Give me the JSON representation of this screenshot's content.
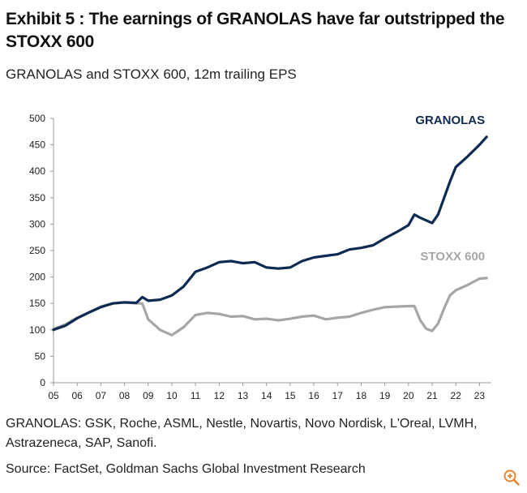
{
  "header": {
    "title": "Exhibit 5 : The earnings of GRANOLAS have far outstripped the STOXX 600",
    "subtitle": "GRANOLAS and STOXX 600, 12m trailing EPS"
  },
  "footer": {
    "note": "GRANOLAS: GSK, Roche, ASML, Nestle, Novartis, Novo Nordisk, L'Oreal, LVMH, Astrazeneca, SAP, Sanofi.",
    "source": "Source: FactSet, Goldman Sachs Global Investment Research",
    "zoom_icon": "zoom-in-icon"
  },
  "chart_data": {
    "type": "line",
    "title": "GRANOLAS and STOXX 600, 12m trailing EPS",
    "xlabel": "",
    "ylabel": "",
    "xlim": [
      2005,
      2023.5
    ],
    "ylim": [
      0,
      500
    ],
    "yticks": [
      0,
      50,
      100,
      150,
      200,
      250,
      300,
      350,
      400,
      450,
      500
    ],
    "xticks": [
      {
        "value": 2005,
        "label": "05"
      },
      {
        "value": 2006,
        "label": "06"
      },
      {
        "value": 2007,
        "label": "07"
      },
      {
        "value": 2008,
        "label": "08"
      },
      {
        "value": 2009,
        "label": "09"
      },
      {
        "value": 2010,
        "label": "10"
      },
      {
        "value": 2011,
        "label": "11"
      },
      {
        "value": 2012,
        "label": "12"
      },
      {
        "value": 2013,
        "label": "13"
      },
      {
        "value": 2014,
        "label": "14"
      },
      {
        "value": 2015,
        "label": "15"
      },
      {
        "value": 2016,
        "label": "16"
      },
      {
        "value": 2017,
        "label": "17"
      },
      {
        "value": 2018,
        "label": "18"
      },
      {
        "value": 2019,
        "label": "19"
      },
      {
        "value": 2020,
        "label": "20"
      },
      {
        "value": 2021,
        "label": "21"
      },
      {
        "value": 2022,
        "label": "22"
      },
      {
        "value": 2023,
        "label": "23"
      }
    ],
    "grid": false,
    "series": [
      {
        "name": "GRANOLAS",
        "color": "#0d2b52",
        "x": [
          2005.0,
          2005.5,
          2006.0,
          2006.5,
          2007.0,
          2007.5,
          2008.0,
          2008.5,
          2008.75,
          2009.0,
          2009.5,
          2010.0,
          2010.5,
          2011.0,
          2011.5,
          2012.0,
          2012.5,
          2013.0,
          2013.5,
          2014.0,
          2014.5,
          2015.0,
          2015.5,
          2016.0,
          2016.5,
          2017.0,
          2017.5,
          2018.0,
          2018.5,
          2019.0,
          2019.5,
          2020.0,
          2020.25,
          2020.5,
          2021.0,
          2021.25,
          2021.75,
          2022.0,
          2022.5,
          2023.0,
          2023.3
        ],
        "values": [
          100,
          108,
          122,
          133,
          143,
          150,
          152,
          151,
          162,
          155,
          157,
          165,
          182,
          210,
          218,
          228,
          230,
          226,
          228,
          218,
          216,
          218,
          230,
          237,
          240,
          243,
          252,
          255,
          260,
          273,
          285,
          298,
          318,
          312,
          302,
          318,
          380,
          408,
          428,
          450,
          465
        ]
      },
      {
        "name": "STOXX 600",
        "color": "#a6a6a6",
        "x": [
          2005.0,
          2005.5,
          2006.0,
          2006.5,
          2007.0,
          2007.5,
          2008.0,
          2008.5,
          2008.75,
          2009.0,
          2009.5,
          2010.0,
          2010.5,
          2011.0,
          2011.5,
          2012.0,
          2012.5,
          2013.0,
          2013.5,
          2014.0,
          2014.5,
          2015.0,
          2015.5,
          2016.0,
          2016.5,
          2017.0,
          2017.5,
          2018.0,
          2018.5,
          2019.0,
          2019.5,
          2020.0,
          2020.25,
          2020.5,
          2020.75,
          2021.0,
          2021.25,
          2021.5,
          2021.75,
          2022.0,
          2022.5,
          2023.0,
          2023.3
        ],
        "values": [
          102,
          110,
          123,
          133,
          144,
          150,
          152,
          150,
          150,
          120,
          100,
          90,
          105,
          128,
          132,
          130,
          125,
          126,
          120,
          121,
          118,
          121,
          125,
          127,
          120,
          123,
          125,
          132,
          138,
          143,
          144,
          145,
          145,
          118,
          102,
          98,
          112,
          140,
          165,
          175,
          185,
          197,
          198
        ]
      }
    ],
    "annotations": [
      {
        "series": "GRANOLAS",
        "text": "GRANOLAS",
        "anchor": "above line end, right"
      },
      {
        "series": "STOXX 600",
        "text": "STOXX 600",
        "anchor": "above line end, right"
      }
    ]
  }
}
